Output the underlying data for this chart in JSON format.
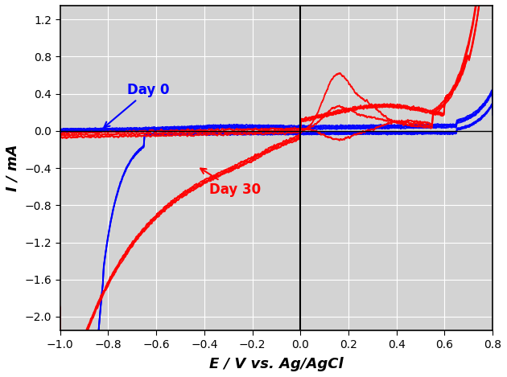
{
  "xlim": [
    -1.0,
    0.8
  ],
  "ylim": [
    -2.15,
    1.35
  ],
  "xticks": [
    -1.0,
    -0.8,
    -0.6,
    -0.4,
    -0.2,
    0.0,
    0.2,
    0.4,
    0.6,
    0.8
  ],
  "yticks": [
    -2.0,
    -1.6,
    -1.2,
    -0.8,
    -0.4,
    0.0,
    0.4,
    0.8,
    1.2
  ],
  "xlabel": "E / V vs. Ag/AgCl",
  "ylabel": "I / mA",
  "blue_color": "#0000FF",
  "red_color": "#FF0000",
  "background_color": "#D3D3D3",
  "annotation_day0": "Day 0",
  "annotation_day30": "Day 30",
  "vline_x": 0.0,
  "hline_y": 0.0
}
